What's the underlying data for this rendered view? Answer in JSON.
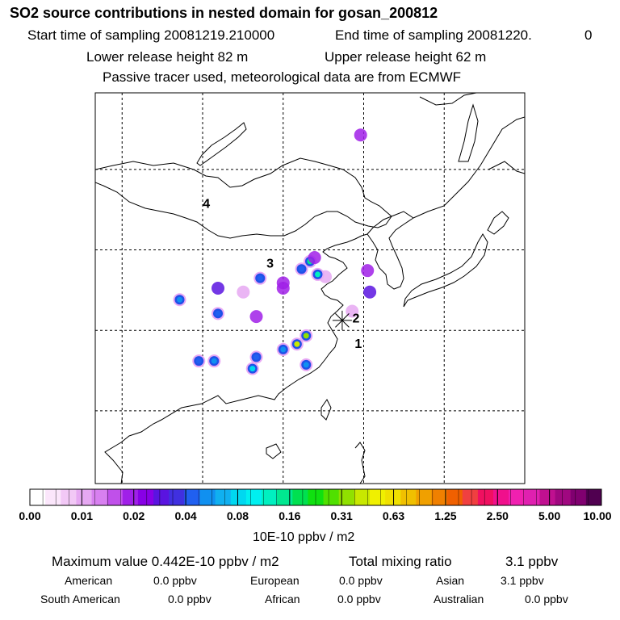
{
  "header": {
    "title": "SO2 source contributions in nested domain for gosan_200812",
    "start_label": "Start time of sampling 20081219.210000",
    "end_label": "End time of sampling 20081220.",
    "end_suffix": "0",
    "lower_release": "Lower release height   82 m",
    "upper_release": "Upper release height   62 m",
    "tracer_note": "Passive tracer used, meteorological data are from ECMWF"
  },
  "chart_data": {
    "type": "heatmap",
    "title": "SO2 source contributions in nested domain for gosan_200812",
    "grid": true,
    "receptor_marker": "gosan-star",
    "region_labels": [
      "1",
      "2",
      "3",
      "4"
    ],
    "colorbar": {
      "ticks": [
        "0.00",
        "0.01",
        "0.02",
        "0.04",
        "0.08",
        "0.16",
        "0.31",
        "0.63",
        "1.25",
        "2.50",
        "5.00",
        "10.00"
      ],
      "unit": "10E-10 ppbv / m2",
      "colors": [
        "#ffffff",
        "#fbe6fb",
        "#f2c8f6",
        "#e6a8f2",
        "#d880f0",
        "#c050ea",
        "#a020e8",
        "#8800e6",
        "#5a14e0",
        "#4030e0",
        "#2060f0",
        "#1090f0",
        "#10b0f0",
        "#00d8f0",
        "#00f0f0",
        "#00f0c0",
        "#00e890",
        "#00e050",
        "#10e010",
        "#50e000",
        "#90e000",
        "#c8e800",
        "#f0f000",
        "#f0e000",
        "#f0c000",
        "#f0a000",
        "#f08000",
        "#f06000",
        "#f04040",
        "#f01060",
        "#f0108c",
        "#f020b0",
        "#e020b0",
        "#c01090",
        "#a00880",
        "#800070",
        "#500050"
      ]
    },
    "plumes": [
      {
        "lon": 128.6,
        "lat": 57.5,
        "value": 0.02
      },
      {
        "lon": 124.0,
        "lat": 39.0,
        "value": 0.01
      },
      {
        "lon": 120.9,
        "lat": 40.0,
        "value": 0.04
      },
      {
        "lon": 122.0,
        "lat": 41.0,
        "value": 0.16
      },
      {
        "lon": 122.6,
        "lat": 41.5,
        "value": 0.02
      },
      {
        "lon": 123.0,
        "lat": 39.3,
        "value": 0.12
      },
      {
        "lon": 118.5,
        "lat": 38.2,
        "value": 0.02
      },
      {
        "lon": 115.5,
        "lat": 38.8,
        "value": 0.04
      },
      {
        "lon": 118.5,
        "lat": 37.5,
        "value": 0.02
      },
      {
        "lon": 113.3,
        "lat": 37.0,
        "value": 0.01
      },
      {
        "lon": 110.0,
        "lat": 37.5,
        "value": 0.03
      },
      {
        "lon": 105.0,
        "lat": 36.0,
        "value": 0.05
      },
      {
        "lon": 110.0,
        "lat": 34.2,
        "value": 0.04
      },
      {
        "lon": 115.0,
        "lat": 33.8,
        "value": 0.02
      },
      {
        "lon": 121.5,
        "lat": 31.3,
        "value": 0.31
      },
      {
        "lon": 120.3,
        "lat": 30.2,
        "value": 0.42
      },
      {
        "lon": 118.5,
        "lat": 29.5,
        "value": 0.05
      },
      {
        "lon": 115.0,
        "lat": 28.5,
        "value": 0.04
      },
      {
        "lon": 107.5,
        "lat": 28.0,
        "value": 0.04
      },
      {
        "lon": 109.5,
        "lat": 28.0,
        "value": 0.05
      },
      {
        "lon": 121.5,
        "lat": 27.5,
        "value": 0.05
      },
      {
        "lon": 114.5,
        "lat": 27.0,
        "value": 0.08
      },
      {
        "lon": 129.8,
        "lat": 37.0,
        "value": 0.03
      },
      {
        "lon": 127.5,
        "lat": 34.5,
        "value": 0.01
      },
      {
        "lon": 129.5,
        "lat": 39.8,
        "value": 0.02
      }
    ],
    "receptor": {
      "name": "gosan",
      "lon": 126.2,
      "lat": 33.3
    }
  },
  "summary": {
    "max_label": "Maximum value  0.442E-10 ppbv / m2",
    "total_label": "Total mixing ratio",
    "total_value": "3.1 ppbv",
    "regions_row1": [
      {
        "name": "American",
        "value": "0.0 ppbv"
      },
      {
        "name": "European",
        "value": "0.0 ppbv"
      },
      {
        "name": "Asian",
        "value": "3.1 ppbv"
      }
    ],
    "regions_row2": [
      {
        "name": "South American",
        "value": "0.0 ppbv"
      },
      {
        "name": "African",
        "value": "0.0 ppbv"
      },
      {
        "name": "Australian",
        "value": "0.0 ppbv"
      }
    ]
  }
}
